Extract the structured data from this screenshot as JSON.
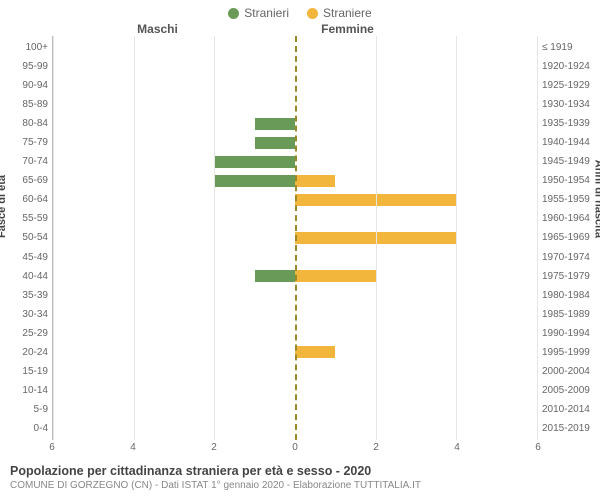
{
  "legend": [
    {
      "label": "Stranieri",
      "color": "#6a9a57"
    },
    {
      "label": "Straniere",
      "color": "#f2b63c"
    }
  ],
  "headers": {
    "left": "Maschi",
    "right": "Femmine"
  },
  "axis_labels": {
    "left": "Fasce di età",
    "right": "Anni di nascita"
  },
  "colors": {
    "male": "#6a9a57",
    "female": "#f2b63c",
    "grid": "#e6e6e6",
    "center": "#9a8a2a",
    "bg": "#ffffff"
  },
  "xaxis": {
    "min": 0,
    "max": 6,
    "ticks": [
      6,
      4,
      2,
      0,
      2,
      4,
      6
    ]
  },
  "rows": [
    {
      "age": "100+",
      "birth": "≤ 1919",
      "m": 0,
      "f": 0
    },
    {
      "age": "95-99",
      "birth": "1920-1924",
      "m": 0,
      "f": 0
    },
    {
      "age": "90-94",
      "birth": "1925-1929",
      "m": 0,
      "f": 0
    },
    {
      "age": "85-89",
      "birth": "1930-1934",
      "m": 0,
      "f": 0
    },
    {
      "age": "80-84",
      "birth": "1935-1939",
      "m": 1,
      "f": 0
    },
    {
      "age": "75-79",
      "birth": "1940-1944",
      "m": 1,
      "f": 0
    },
    {
      "age": "70-74",
      "birth": "1945-1949",
      "m": 2,
      "f": 0
    },
    {
      "age": "65-69",
      "birth": "1950-1954",
      "m": 2,
      "f": 1
    },
    {
      "age": "60-64",
      "birth": "1955-1959",
      "m": 0,
      "f": 4
    },
    {
      "age": "55-59",
      "birth": "1960-1964",
      "m": 0,
      "f": 0
    },
    {
      "age": "50-54",
      "birth": "1965-1969",
      "m": 0,
      "f": 4
    },
    {
      "age": "45-49",
      "birth": "1970-1974",
      "m": 0,
      "f": 0
    },
    {
      "age": "40-44",
      "birth": "1975-1979",
      "m": 1,
      "f": 2
    },
    {
      "age": "35-39",
      "birth": "1980-1984",
      "m": 0,
      "f": 0
    },
    {
      "age": "30-34",
      "birth": "1985-1989",
      "m": 0,
      "f": 0
    },
    {
      "age": "25-29",
      "birth": "1990-1994",
      "m": 0,
      "f": 0
    },
    {
      "age": "20-24",
      "birth": "1995-1999",
      "m": 0,
      "f": 1
    },
    {
      "age": "15-19",
      "birth": "2000-2004",
      "m": 0,
      "f": 0
    },
    {
      "age": "10-14",
      "birth": "2005-2009",
      "m": 0,
      "f": 0
    },
    {
      "age": "5-9",
      "birth": "2010-2014",
      "m": 0,
      "f": 0
    },
    {
      "age": "0-4",
      "birth": "2015-2019",
      "m": 0,
      "f": 0
    }
  ],
  "footer": {
    "title": "Popolazione per cittadinanza straniera per età e sesso - 2020",
    "subtitle": "COMUNE DI GORZEGNO (CN) - Dati ISTAT 1° gennaio 2020 - Elaborazione TUTTITALIA.IT"
  }
}
